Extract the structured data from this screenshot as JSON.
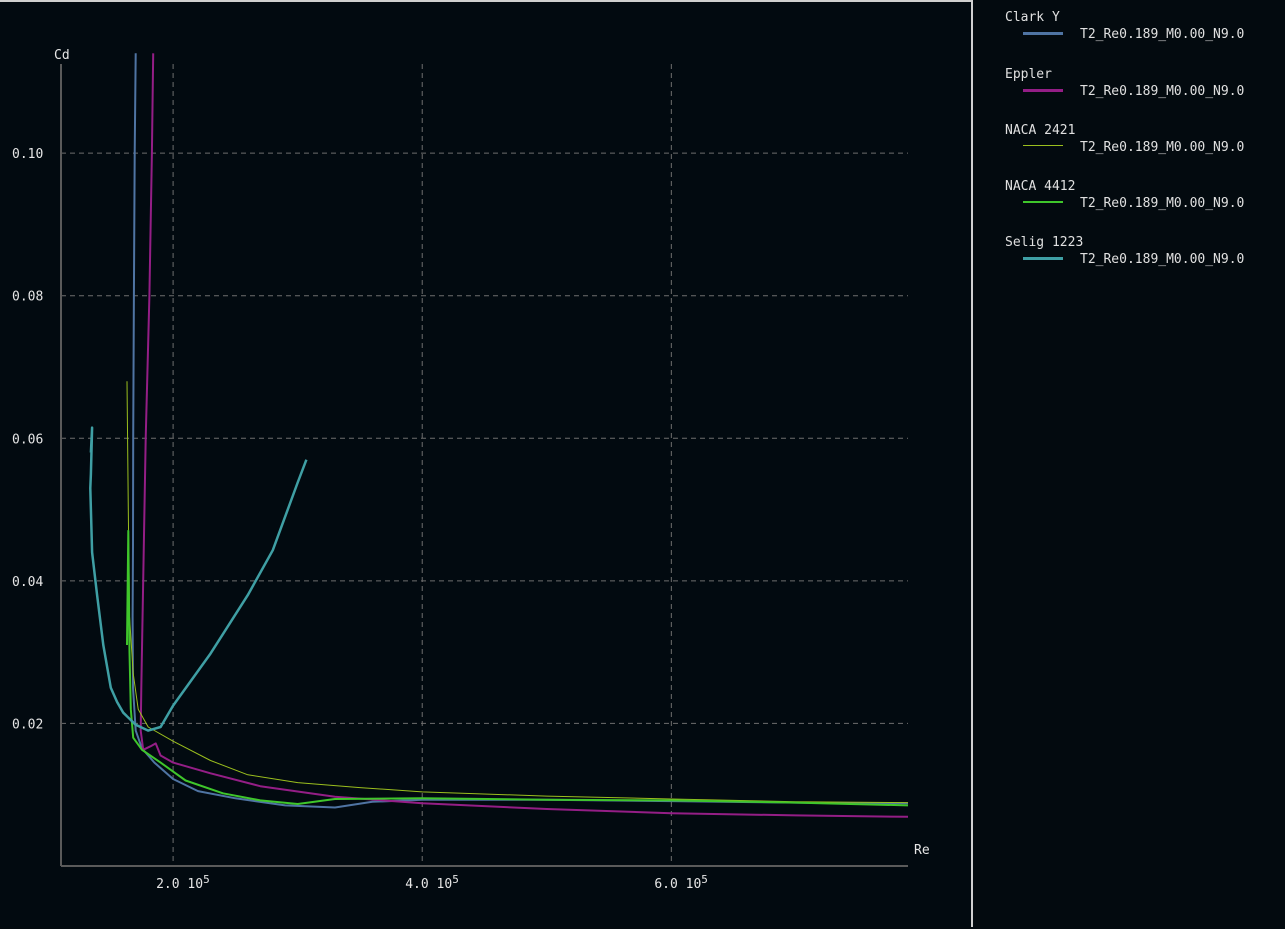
{
  "chart_data": {
    "type": "line",
    "xlabel": "Re",
    "ylabel": "Cd",
    "xlim": [
      110000,
      790000
    ],
    "ylim": [
      0,
      0.1125
    ],
    "x_ticks": [
      {
        "value": 200000,
        "label": "2.0",
        "exp": "10",
        "sup": "5"
      },
      {
        "value": 400000,
        "label": "4.0",
        "exp": "10",
        "sup": "5"
      },
      {
        "value": 600000,
        "label": "6.0",
        "exp": "10",
        "sup": "5"
      }
    ],
    "y_ticks": [
      {
        "value": 0.02,
        "label": "0.02"
      },
      {
        "value": 0.04,
        "label": "0.04"
      },
      {
        "value": 0.06,
        "label": "0.06"
      },
      {
        "value": 0.08,
        "label": "0.08"
      },
      {
        "value": 0.1,
        "label": "0.10"
      }
    ],
    "grid": true,
    "legend_position": "right",
    "series": [
      {
        "name": "Clark Y",
        "label": "T2_Re0.189_M0.00_N9.0",
        "color": "#4f74a3",
        "width": 2,
        "points": [
          [
            170000,
            0.114
          ],
          [
            169200,
            0.1
          ],
          [
            168500,
            0.08
          ],
          [
            168000,
            0.06
          ],
          [
            167800,
            0.045
          ],
          [
            167500,
            0.035
          ],
          [
            167800,
            0.025
          ],
          [
            170000,
            0.019
          ],
          [
            175000,
            0.0165
          ],
          [
            185000,
            0.0145
          ],
          [
            200000,
            0.0122
          ],
          [
            220000,
            0.0105
          ],
          [
            250000,
            0.0095
          ],
          [
            290000,
            0.0085
          ],
          [
            330000,
            0.0082
          ],
          [
            360000,
            0.009
          ],
          [
            400000,
            0.0093
          ],
          [
            500000,
            0.0093
          ],
          [
            600000,
            0.0091
          ],
          [
            700000,
            0.0089
          ],
          [
            790000,
            0.0088
          ]
        ]
      },
      {
        "name": "Eppler",
        "label": "T2_Re0.189_M0.00_N9.0",
        "color": "#941e86",
        "width": 2,
        "points": [
          [
            184000,
            0.114
          ],
          [
            183000,
            0.1
          ],
          [
            181000,
            0.08
          ],
          [
            178000,
            0.06
          ],
          [
            176000,
            0.04
          ],
          [
            174500,
            0.025
          ],
          [
            174000,
            0.019
          ],
          [
            176000,
            0.0163
          ],
          [
            182000,
            0.0168
          ],
          [
            186000,
            0.0172
          ],
          [
            190000,
            0.0155
          ],
          [
            200000,
            0.0145
          ],
          [
            230000,
            0.013
          ],
          [
            270000,
            0.0112
          ],
          [
            330000,
            0.0097
          ],
          [
            400000,
            0.0088
          ],
          [
            500000,
            0.008
          ],
          [
            600000,
            0.0074
          ],
          [
            700000,
            0.0071
          ],
          [
            790000,
            0.0069
          ]
        ]
      },
      {
        "name": "NACA 2421",
        "label": "T2_Re0.189_M0.00_N9.0",
        "color": "#9bbf1e",
        "width": 1,
        "points": [
          [
            163000,
            0.068
          ],
          [
            164000,
            0.05
          ],
          [
            165000,
            0.035
          ],
          [
            168000,
            0.027
          ],
          [
            172000,
            0.022
          ],
          [
            180000,
            0.0195
          ],
          [
            200000,
            0.0175
          ],
          [
            230000,
            0.0148
          ],
          [
            260000,
            0.0128
          ],
          [
            300000,
            0.0117
          ],
          [
            350000,
            0.011
          ],
          [
            400000,
            0.0104
          ],
          [
            500000,
            0.0098
          ],
          [
            600000,
            0.0094
          ],
          [
            700000,
            0.009
          ],
          [
            790000,
            0.0089
          ]
        ]
      },
      {
        "name": "NACA 4412",
        "label": "T2_Re0.189_M0.00_N9.0",
        "color": "#3fc62b",
        "width": 2,
        "points": [
          [
            163000,
            0.031
          ],
          [
            164000,
            0.047
          ],
          [
            165000,
            0.03
          ],
          [
            166000,
            0.022
          ],
          [
            168000,
            0.018
          ],
          [
            175000,
            0.0163
          ],
          [
            190000,
            0.0145
          ],
          [
            210000,
            0.012
          ],
          [
            240000,
            0.0102
          ],
          [
            270000,
            0.0092
          ],
          [
            300000,
            0.0087
          ],
          [
            330000,
            0.0094
          ],
          [
            400000,
            0.0095
          ],
          [
            500000,
            0.0093
          ],
          [
            600000,
            0.0092
          ],
          [
            700000,
            0.0089
          ],
          [
            790000,
            0.0085
          ]
        ]
      },
      {
        "name": "Selig 1223",
        "label": "T2_Re0.189_M0.00_N9.0",
        "color": "#3f9fa4",
        "width": 2.5,
        "points": [
          [
            134000,
            0.058
          ],
          [
            135000,
            0.0615
          ],
          [
            134000,
            0.055
          ],
          [
            133500,
            0.053
          ],
          [
            135000,
            0.044
          ],
          [
            139000,
            0.038
          ],
          [
            144000,
            0.031
          ],
          [
            150000,
            0.025
          ],
          [
            155000,
            0.023
          ],
          [
            160000,
            0.0215
          ],
          [
            170000,
            0.0198
          ],
          [
            180000,
            0.019
          ],
          [
            190000,
            0.0195
          ],
          [
            200000,
            0.0225
          ],
          [
            230000,
            0.0298
          ],
          [
            260000,
            0.038
          ],
          [
            280000,
            0.0443
          ],
          [
            300000,
            0.0538
          ],
          [
            307000,
            0.057
          ]
        ]
      }
    ]
  },
  "legend": {
    "entries": [
      {
        "name": "Clark Y",
        "label": "T2_Re0.189_M0.00_N9.0",
        "color": "#4f74a3"
      },
      {
        "name": "Eppler",
        "label": "T2_Re0.189_M0.00_N9.0",
        "color": "#941e86"
      },
      {
        "name": "NACA 2421",
        "label": "T2_Re0.189_M0.00_N9.0",
        "color": "#9bbf1e"
      },
      {
        "name": "NACA 4412",
        "label": "T2_Re0.189_M0.00_N9.0",
        "color": "#3fc62b"
      },
      {
        "name": "Selig 1223",
        "label": "T2_Re0.189_M0.00_N9.0",
        "color": "#3f9fa4"
      }
    ]
  },
  "colors": {
    "plot_background": "#020a10",
    "grid": "#6e6e6e",
    "axis": "#5a5a5a"
  }
}
